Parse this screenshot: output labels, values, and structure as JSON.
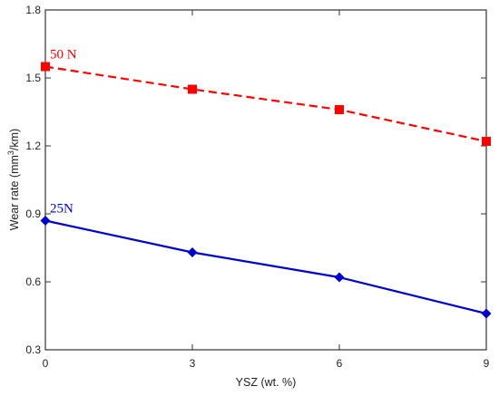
{
  "chart_data": {
    "type": "line",
    "xlabel": "YSZ (wt. %)",
    "ylabel_main": "Wear rate (mm",
    "ylabel_sup": "3",
    "ylabel_tail": "/km)",
    "x": [
      0,
      3,
      6,
      9
    ],
    "xlim": [
      0,
      9
    ],
    "ylim": [
      0.3,
      1.8
    ],
    "x_ticks": [
      0,
      3,
      6,
      9
    ],
    "y_ticks": [
      0.3,
      0.6,
      0.9,
      1.2,
      1.5,
      1.8
    ],
    "y_tick_labels": [
      "0.3",
      "0.6",
      "0.9",
      "1.2",
      "1.5",
      "1.8"
    ],
    "x_tick_labels": [
      "0",
      "3",
      "6",
      "9"
    ],
    "grid": false,
    "series": [
      {
        "name": "50 N",
        "values": [
          1.55,
          1.45,
          1.36,
          1.22
        ],
        "color": "#ff0000",
        "marker": "square",
        "line_style": "dashed"
      },
      {
        "name": "25N",
        "values": [
          0.87,
          0.73,
          0.62,
          0.46
        ],
        "color": "#0000cc",
        "marker": "diamond",
        "line_style": "solid"
      }
    ]
  }
}
